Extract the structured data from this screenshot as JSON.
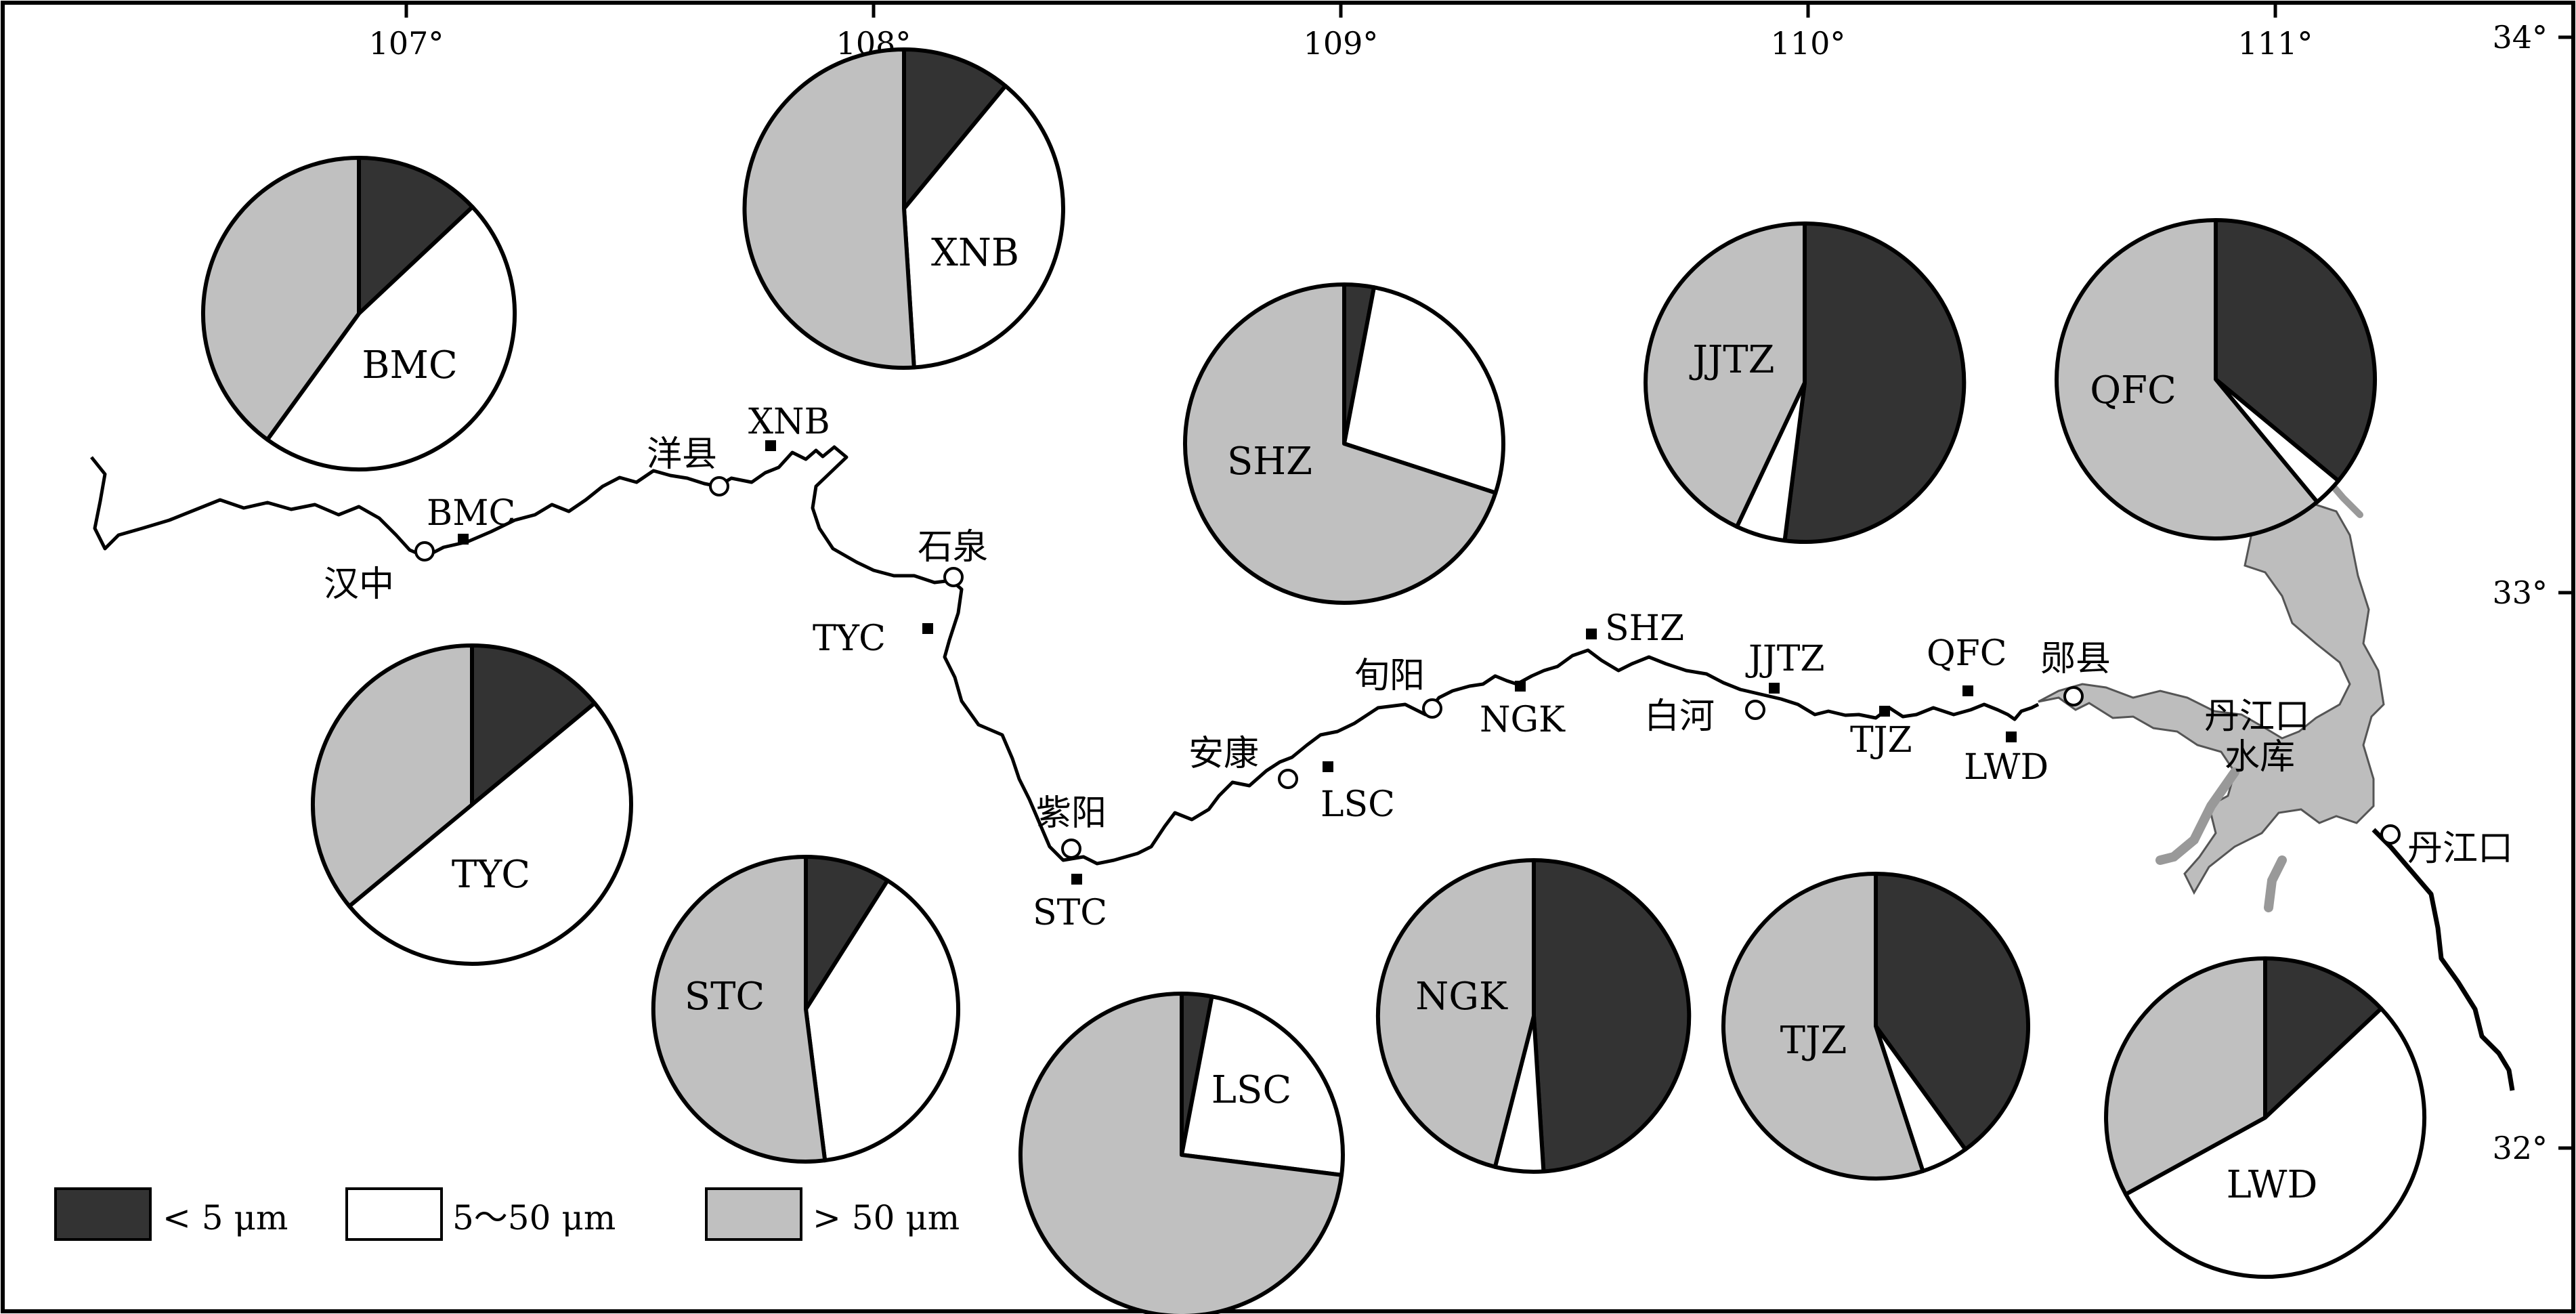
{
  "colors": {
    "fine": "#333333",
    "medium": "#ffffff",
    "coarse": "#c0c0c0",
    "reservoir": "#bdbdbd",
    "ink": "#000000"
  },
  "axes": {
    "lon_ticks": [
      {
        "value": 107,
        "label": "107°"
      },
      {
        "value": 108,
        "label": "108°"
      },
      {
        "value": 109,
        "label": "109°"
      },
      {
        "value": 110,
        "label": "110°"
      },
      {
        "value": 111,
        "label": "111°"
      }
    ],
    "lat_ticks": [
      {
        "value": 34,
        "label": "34°"
      },
      {
        "value": 33,
        "label": "33°"
      },
      {
        "value": 32,
        "label": "32°"
      }
    ]
  },
  "legend": {
    "items": [
      {
        "key": "fine",
        "label": "< 5 μm"
      },
      {
        "key": "medium",
        "label": "5～50 μm"
      },
      {
        "key": "coarse",
        "label": "> 50 μm"
      }
    ]
  },
  "towns": [
    {
      "name": "汉中"
    },
    {
      "name": "洋县"
    },
    {
      "name": "石泉"
    },
    {
      "name": "紫阳"
    },
    {
      "name": "安康"
    },
    {
      "name": "旬阳"
    },
    {
      "name": "白河"
    },
    {
      "name": "郧县"
    },
    {
      "name": "丹江口"
    }
  ],
  "reservoir": {
    "label_line1": "丹江口",
    "label_line2": "水库"
  },
  "sites": [
    {
      "name": "BMC"
    },
    {
      "name": "XNB"
    },
    {
      "name": "TYC"
    },
    {
      "name": "STC"
    },
    {
      "name": "LSC"
    },
    {
      "name": "NGK"
    },
    {
      "name": "SHZ"
    },
    {
      "name": "JJTZ"
    },
    {
      "name": "TJZ"
    },
    {
      "name": "QFC"
    },
    {
      "name": "LWD"
    }
  ],
  "chart_data": {
    "type": "pie",
    "unit": "fraction of particle-size classes",
    "classes": [
      "< 5 μm",
      "5～50 μm",
      "> 50 μm"
    ],
    "pies": [
      {
        "site": "BMC",
        "values": [
          0.13,
          0.47,
          0.4
        ]
      },
      {
        "site": "XNB",
        "values": [
          0.11,
          0.38,
          0.51
        ]
      },
      {
        "site": "SHZ",
        "values": [
          0.03,
          0.27,
          0.7
        ]
      },
      {
        "site": "JJTZ",
        "values": [
          0.52,
          0.05,
          0.43
        ]
      },
      {
        "site": "QFC",
        "values": [
          0.36,
          0.03,
          0.61
        ]
      },
      {
        "site": "TYC",
        "values": [
          0.14,
          0.5,
          0.36
        ]
      },
      {
        "site": "STC",
        "values": [
          0.09,
          0.39,
          0.52
        ]
      },
      {
        "site": "LSC",
        "values": [
          0.03,
          0.24,
          0.73
        ]
      },
      {
        "site": "NGK",
        "values": [
          0.49,
          0.05,
          0.46
        ]
      },
      {
        "site": "TJZ",
        "values": [
          0.4,
          0.05,
          0.55
        ]
      },
      {
        "site": "LWD",
        "values": [
          0.13,
          0.54,
          0.33
        ]
      }
    ]
  }
}
